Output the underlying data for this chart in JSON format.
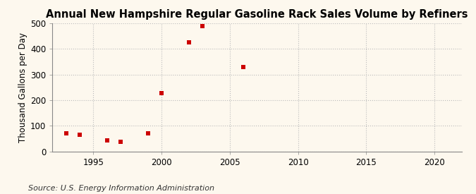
{
  "title": "Annual New Hampshire Regular Gasoline Rack Sales Volume by Refiners",
  "ylabel": "Thousand Gallons per Day",
  "source": "Source: U.S. Energy Information Administration",
  "x_values": [
    1993,
    1994,
    1996,
    1997,
    1999,
    2000,
    2002,
    2003,
    2006
  ],
  "y_values": [
    70,
    64,
    43,
    38,
    70,
    228,
    425,
    488,
    328
  ],
  "marker_color": "#cc0000",
  "marker_size": 18,
  "xlim": [
    1992,
    2022
  ],
  "ylim": [
    0,
    500
  ],
  "xticks": [
    1995,
    2000,
    2005,
    2010,
    2015,
    2020
  ],
  "yticks": [
    0,
    100,
    200,
    300,
    400,
    500
  ],
  "background_color": "#fdf8ee",
  "plot_bg_color": "#fdf8ee",
  "grid_color": "#bbbbbb",
  "title_fontsize": 10.5,
  "label_fontsize": 8.5,
  "source_fontsize": 8
}
